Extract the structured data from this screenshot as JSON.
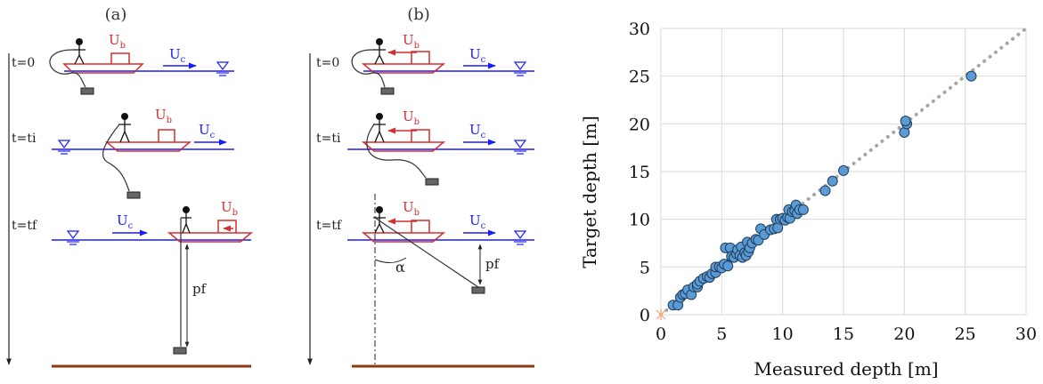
{
  "schematic": {
    "panel_a_label": "(a)",
    "panel_b_label": "(b)",
    "time_labels": [
      "t=0",
      "t=ti",
      "t=tf"
    ],
    "boat_velocity": "U",
    "boat_velocity_sub": "b",
    "current_velocity": "U",
    "current_velocity_sub": "c",
    "final_depth_label": "pf",
    "angle_label": "α",
    "colors": {
      "boat": "#d32f2f",
      "water": "#1a1aff",
      "bed": "#8b3a0f",
      "line": "#222222"
    }
  },
  "chart_data": {
    "type": "scatter",
    "xlabel": "Measured depth [m]",
    "ylabel": "Target depth [m]",
    "xlim": [
      0,
      30
    ],
    "ylim": [
      0,
      30
    ],
    "xticks": [
      0,
      5,
      10,
      15,
      20,
      25,
      30
    ],
    "yticks": [
      0,
      5,
      10,
      15,
      20,
      25,
      30
    ],
    "grid": true,
    "reference_line": "1:1 dotted",
    "colors": {
      "marker": "#5b9bd5",
      "marker_edge": "#1f3b5a",
      "ref_line": "#a6a6a6",
      "origin_marker": "#f4b183"
    },
    "origin_point": [
      0,
      0
    ],
    "points": [
      [
        1.0,
        1.0
      ],
      [
        1.4,
        1.0
      ],
      [
        1.6,
        1.8
      ],
      [
        1.8,
        2.1
      ],
      [
        2.0,
        2.2
      ],
      [
        2.2,
        2.6
      ],
      [
        2.5,
        2.1
      ],
      [
        2.7,
        2.9
      ],
      [
        3.0,
        2.9
      ],
      [
        3.0,
        3.2
      ],
      [
        3.2,
        3.5
      ],
      [
        3.5,
        3.8
      ],
      [
        3.8,
        4.0
      ],
      [
        4.0,
        3.9
      ],
      [
        4.2,
        4.3
      ],
      [
        4.5,
        4.4
      ],
      [
        4.5,
        5.0
      ],
      [
        4.8,
        5.0
      ],
      [
        5.0,
        4.9
      ],
      [
        5.2,
        5.3
      ],
      [
        5.5,
        5.1
      ],
      [
        5.3,
        7.0
      ],
      [
        5.7,
        7.0
      ],
      [
        5.8,
        6.1
      ],
      [
        6.0,
        6.0
      ],
      [
        6.2,
        6.4
      ],
      [
        6.3,
        6.8
      ],
      [
        6.5,
        6.2
      ],
      [
        6.6,
        7.1
      ],
      [
        6.7,
        6.0
      ],
      [
        6.9,
        6.5
      ],
      [
        7.0,
        6.2
      ],
      [
        7.1,
        7.6
      ],
      [
        7.2,
        6.6
      ],
      [
        7.3,
        7.0
      ],
      [
        7.5,
        7.5
      ],
      [
        7.8,
        7.9
      ],
      [
        8.0,
        7.8
      ],
      [
        8.2,
        9.0
      ],
      [
        8.5,
        8.4
      ],
      [
        9.0,
        8.9
      ],
      [
        9.3,
        9.0
      ],
      [
        9.5,
        10.0
      ],
      [
        9.6,
        9.1
      ],
      [
        9.8,
        10.0
      ],
      [
        10.0,
        10.1
      ],
      [
        10.2,
        9.9
      ],
      [
        10.4,
        10.2
      ],
      [
        10.6,
        10.1
      ],
      [
        10.5,
        11.0
      ],
      [
        10.8,
        10.8
      ],
      [
        11.0,
        10.9
      ],
      [
        11.1,
        11.5
      ],
      [
        11.2,
        10.6
      ],
      [
        11.4,
        11.0
      ],
      [
        11.7,
        11.0
      ],
      [
        13.5,
        13.0
      ],
      [
        14.1,
        14.0
      ],
      [
        15.0,
        15.1
      ],
      [
        20.0,
        19.1
      ],
      [
        20.2,
        20.0
      ],
      [
        20.1,
        20.3
      ],
      [
        25.5,
        25.0
      ]
    ]
  }
}
